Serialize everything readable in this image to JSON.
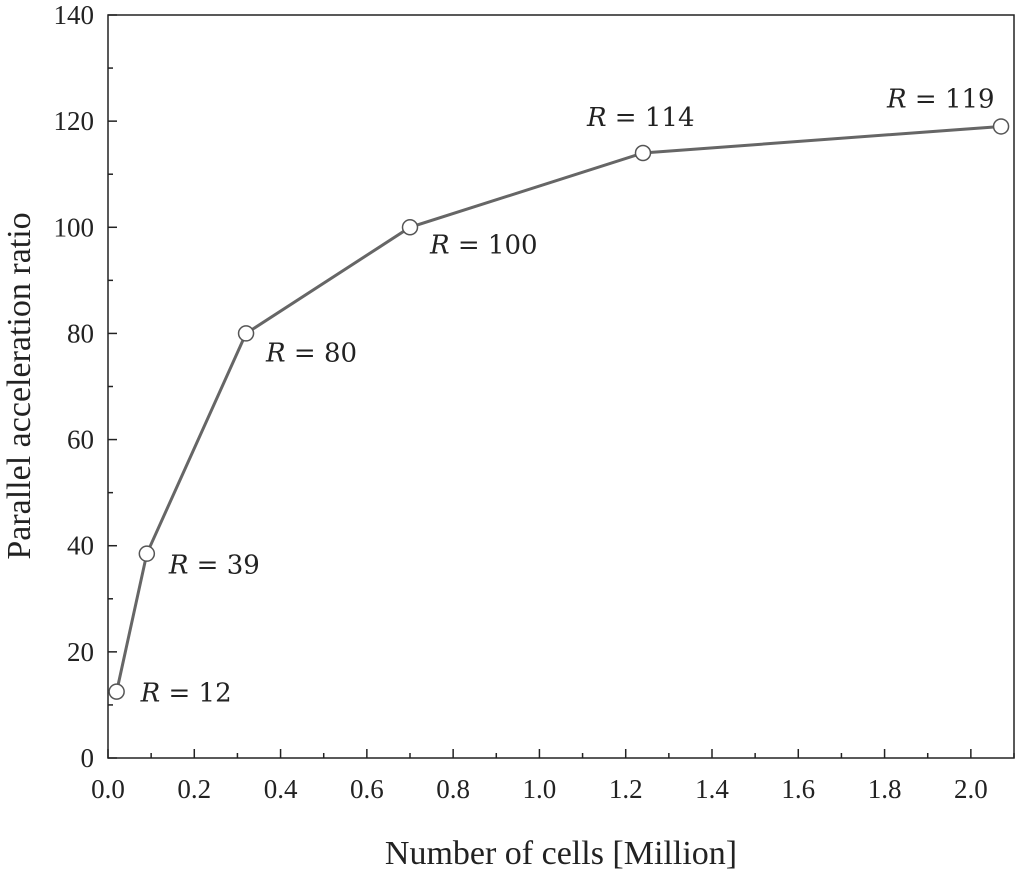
{
  "chart_data": {
    "type": "line",
    "xlabel": "Number of cells [Million]",
    "ylabel": "Parallel acceleration ratio",
    "xlim": [
      0.0,
      2.1
    ],
    "ylim": [
      0,
      140
    ],
    "x_ticks": [
      "0.0",
      "0.2",
      "0.4",
      "0.6",
      "0.8",
      "1.0",
      "1.2",
      "1.4",
      "1.6",
      "1.8",
      "2.0"
    ],
    "y_ticks": [
      "0",
      "20",
      "40",
      "60",
      "80",
      "100",
      "120",
      "140"
    ],
    "grid": false,
    "legend": "none",
    "line_color": "#666666",
    "marker": "open-circle",
    "series": [
      {
        "x": [
          0.02,
          0.09,
          0.32,
          0.7,
          1.24,
          2.07
        ],
        "y": [
          12.5,
          38.5,
          80,
          100,
          114,
          119
        ]
      }
    ],
    "annotations": [
      {
        "var": "R",
        "eq": " = ",
        "value": "12"
      },
      {
        "var": "R",
        "eq": " = ",
        "value": "39"
      },
      {
        "var": "R",
        "eq": " = ",
        "value": "80"
      },
      {
        "var": "R",
        "eq": " = ",
        "value": "100"
      },
      {
        "var": "R",
        "eq": " = ",
        "value": "114"
      },
      {
        "var": "R",
        "eq": " = ",
        "value": "119"
      }
    ]
  }
}
